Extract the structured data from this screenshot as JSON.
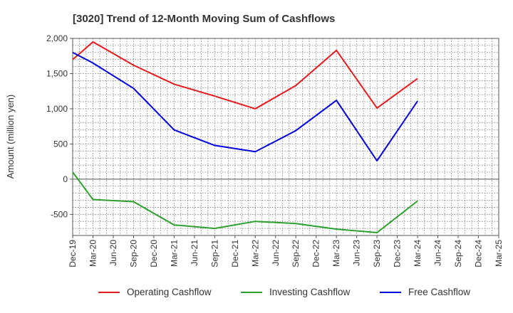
{
  "chart_data": {
    "type": "line",
    "title": "[3020]  Trend of 12-Month Moving Sum of Cashflows",
    "xlabel": "",
    "ylabel": "Amount (million yen)",
    "ylim": [
      -800,
      2000
    ],
    "yticks": [
      2000,
      1500,
      1000,
      500,
      0,
      -500
    ],
    "ytick_labels": [
      "2,000",
      "1,500",
      "1,000",
      "500",
      "0",
      "-500"
    ],
    "categories": [
      "Dec-19",
      "Mar-20",
      "Jun-20",
      "Sep-20",
      "Dec-20",
      "Mar-21",
      "Jun-21",
      "Sep-21",
      "Dec-21",
      "Mar-22",
      "Jun-22",
      "Sep-22",
      "Dec-22",
      "Mar-23",
      "Jun-23",
      "Sep-23",
      "Dec-23",
      "Mar-24",
      "Jun-24",
      "Sep-24",
      "Dec-24",
      "Mar-25"
    ],
    "grid": true,
    "legend_position": "bottom",
    "series": [
      {
        "name": "Operating Cashflow",
        "color": "#e41a1c",
        "points": [
          {
            "x": "Dec-19",
            "y": 1700
          },
          {
            "x": "Mar-20",
            "y": 1950
          },
          {
            "x": "Sep-20",
            "y": 1620
          },
          {
            "x": "Mar-21",
            "y": 1350
          },
          {
            "x": "Sep-21",
            "y": 1180
          },
          {
            "x": "Mar-22",
            "y": 1000
          },
          {
            "x": "Sep-22",
            "y": 1330
          },
          {
            "x": "Mar-23",
            "y": 1830
          },
          {
            "x": "Sep-23",
            "y": 1010
          },
          {
            "x": "Mar-24",
            "y": 1430
          }
        ]
      },
      {
        "name": "Investing Cashflow",
        "color": "#2ca02c",
        "points": [
          {
            "x": "Dec-19",
            "y": 100
          },
          {
            "x": "Mar-20",
            "y": -290
          },
          {
            "x": "Sep-20",
            "y": -320
          },
          {
            "x": "Mar-21",
            "y": -650
          },
          {
            "x": "Sep-21",
            "y": -700
          },
          {
            "x": "Mar-22",
            "y": -600
          },
          {
            "x": "Sep-22",
            "y": -630
          },
          {
            "x": "Mar-23",
            "y": -710
          },
          {
            "x": "Sep-23",
            "y": -760
          },
          {
            "x": "Mar-24",
            "y": -310
          }
        ]
      },
      {
        "name": "Free Cashflow",
        "color": "#0000dd",
        "points": [
          {
            "x": "Dec-19",
            "y": 1800
          },
          {
            "x": "Mar-20",
            "y": 1650
          },
          {
            "x": "Sep-20",
            "y": 1290
          },
          {
            "x": "Mar-21",
            "y": 700
          },
          {
            "x": "Sep-21",
            "y": 480
          },
          {
            "x": "Mar-22",
            "y": 390
          },
          {
            "x": "Sep-22",
            "y": 690
          },
          {
            "x": "Mar-23",
            "y": 1120
          },
          {
            "x": "Sep-23",
            "y": 260
          },
          {
            "x": "Mar-24",
            "y": 1110
          }
        ]
      }
    ]
  }
}
